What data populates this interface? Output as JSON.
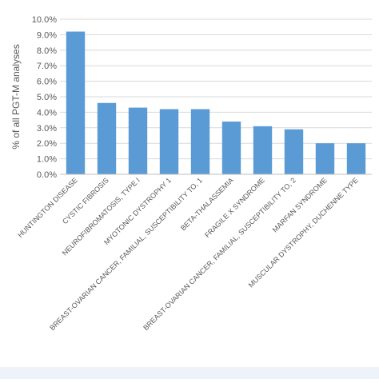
{
  "chart_data": {
    "type": "bar",
    "title": "",
    "xlabel": "",
    "ylabel": "% of all PGT-M analyses",
    "ylim": [
      0,
      10
    ],
    "yticks": [
      "0.0%",
      "1.0%",
      "2.0%",
      "3.0%",
      "4.0%",
      "5.0%",
      "6.0%",
      "7.0%",
      "8.0%",
      "9.0%",
      "10.0%"
    ],
    "grid": true,
    "legend": "none",
    "bar_color": "#5b9bd5",
    "categories": [
      "HUNTINGTON DISEASE",
      "CYSTIC FIBROSIS",
      "NEUROFIBROMATOSIS, TYPE I",
      "MYOTONIC DYSTROPHY 1",
      "BREAST-OVARIAN CANCER, FAMILIAL, SUSCEPTIBILITY TO, 1",
      "BETA-THALASSEMIA",
      "FRAGILE X SYNDROME",
      "BREAST-OVARIAN CANCER, FAMILIAL, SUSCEPTIBILITY TO, 2",
      "MARFAN SYNDROME",
      "MUSCULAR DYSTROPHY, DUCHENNE TYPE"
    ],
    "values": [
      9.2,
      4.6,
      4.3,
      4.2,
      4.2,
      3.4,
      3.1,
      2.9,
      2.0,
      2.0
    ]
  }
}
